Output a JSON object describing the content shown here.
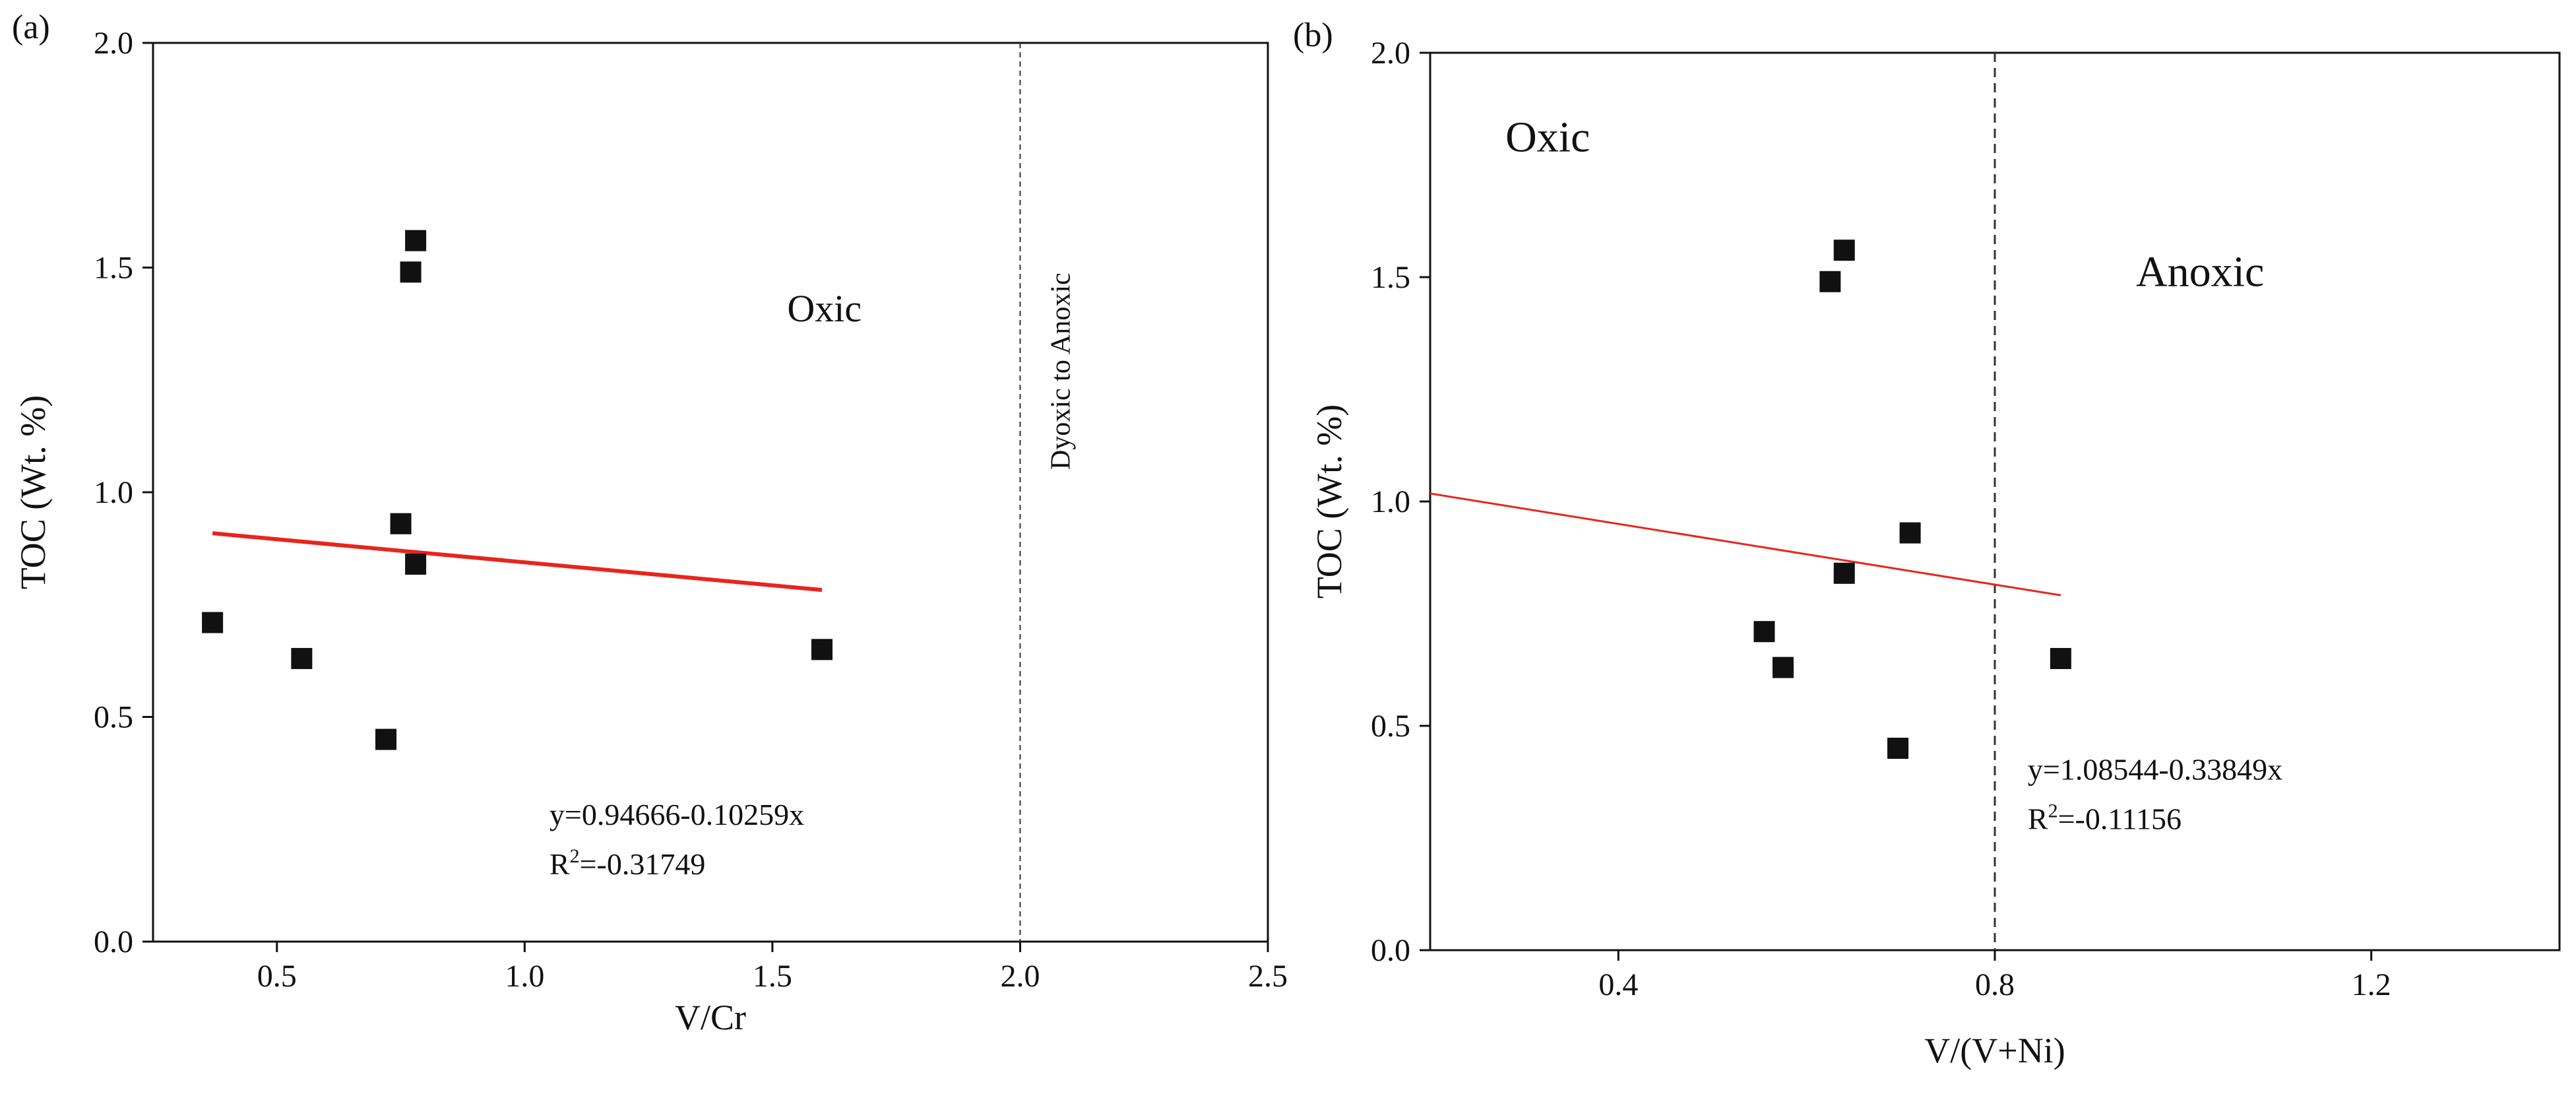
{
  "figure": {
    "colors": {
      "axis": "#111111",
      "point": "#111111",
      "fit_line": "#e8251c",
      "divider": "#333333"
    }
  },
  "chart_data": [
    {
      "type": "scatter",
      "panel_label": "(a)",
      "xlabel": "V/Cr",
      "ylabel": "TOC (Wt. %)",
      "xlim": [
        0.25,
        2.5
      ],
      "ylim": [
        0.0,
        2.0
      ],
      "xticks": [
        0.5,
        1.0,
        1.5,
        2.0,
        2.5
      ],
      "xtick_labels": [
        "0.5",
        "1.0",
        "1.5",
        "2.0",
        "2.5"
      ],
      "yticks": [
        0.0,
        0.5,
        1.0,
        1.5,
        2.0
      ],
      "ytick_labels": [
        "0.0",
        "0.5",
        "1.0",
        "1.5",
        "2.0"
      ],
      "x": [
        0.37,
        0.55,
        0.72,
        0.75,
        0.77,
        0.78,
        0.78,
        1.6
      ],
      "y": [
        0.71,
        0.63,
        0.45,
        0.93,
        1.49,
        1.56,
        0.84,
        0.65
      ],
      "fit": {
        "intercept": 0.94666,
        "slope": -0.10259,
        "x_range": [
          0.37,
          1.6
        ]
      },
      "divider_x": 2.0,
      "annotations": [
        {
          "text": "Oxic",
          "x": 1.53,
          "y": 1.38,
          "rotate": 0
        },
        {
          "text": "Dyoxic to Anoxic",
          "x": 2.1,
          "y": 1.05,
          "rotate": -90
        }
      ],
      "equation": {
        "line1": "y=0.94666-0.10259x",
        "r2_prefix": "R",
        "r2_sup": "2",
        "r2_value": "=-0.31749",
        "x": 1.05,
        "y1": 0.26,
        "y2": 0.15
      }
    },
    {
      "type": "scatter",
      "panel_label": "(b)",
      "xlabel": "V/(V+Ni)",
      "ylabel": "TOC (Wt. %)",
      "xlim": [
        0.2,
        1.4
      ],
      "ylim": [
        0.0,
        2.0
      ],
      "xticks": [
        0.4,
        0.8,
        1.2
      ],
      "xtick_labels": [
        "0.4",
        "0.8",
        "1.2"
      ],
      "yticks": [
        0.0,
        0.5,
        1.0,
        1.5,
        2.0
      ],
      "ytick_labels": [
        "0.0",
        "0.5",
        "1.0",
        "1.5",
        "2.0"
      ],
      "x": [
        0.555,
        0.575,
        0.625,
        0.64,
        0.64,
        0.697,
        0.71,
        0.87
      ],
      "y": [
        0.71,
        0.63,
        1.49,
        1.56,
        0.84,
        0.45,
        0.93,
        0.65
      ],
      "fit": {
        "intercept": 1.08544,
        "slope": -0.33849,
        "x_range": [
          0.2,
          0.87
        ]
      },
      "divider_x": 0.8,
      "annotations": [
        {
          "text": "Oxic",
          "x": 0.28,
          "y": 1.78,
          "rotate": 0
        },
        {
          "text": "Anoxic",
          "x": 0.95,
          "y": 1.48,
          "rotate": 0
        }
      ],
      "equation": {
        "line1": "y=1.08544-0.33849x",
        "r2_prefix": "R",
        "r2_sup": "2",
        "r2_value": "=-0.11156",
        "x": 0.835,
        "y1": 0.38,
        "y2": 0.27
      }
    }
  ]
}
